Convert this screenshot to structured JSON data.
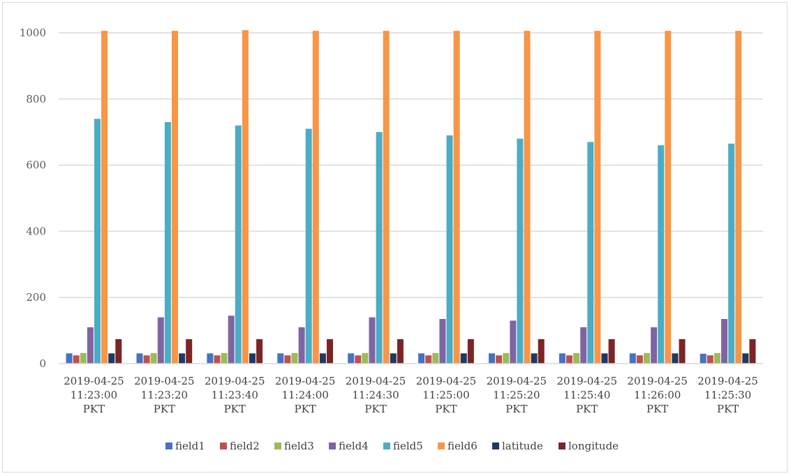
{
  "chart_data": {
    "type": "bar",
    "title": "",
    "xlabel": "",
    "ylabel": "",
    "ylim": [
      0,
      1000
    ],
    "yticks": [
      0,
      200,
      400,
      600,
      800,
      1000
    ],
    "grid": true,
    "legend_position": "bottom",
    "categories": [
      [
        "2019-04-25",
        "11:23:00",
        "PKT"
      ],
      [
        "2019-04-25",
        "11:23:20",
        "PKT"
      ],
      [
        "2019-04-25",
        "11:23:40",
        "PKT"
      ],
      [
        "2019-04-25",
        "11:24:00",
        "PKT"
      ],
      [
        "2019-04-25",
        "11:24:30",
        "PKT"
      ],
      [
        "2019-04-25",
        "11:25:00",
        "PKT"
      ],
      [
        "2019-04-25",
        "11:25:20",
        "PKT"
      ],
      [
        "2019-04-25",
        "11:25:40",
        "PKT"
      ],
      [
        "2019-04-25",
        "11:26:00",
        "PKT"
      ],
      [
        "2019-04-25",
        "11:25:30",
        "PKT"
      ]
    ],
    "series": [
      {
        "name": "field1",
        "color": "#4472c4",
        "values": [
          31,
          31,
          31,
          31,
          31,
          31,
          31,
          31,
          31,
          30
        ]
      },
      {
        "name": "field2",
        "color": "#c0504d",
        "values": [
          25,
          25,
          25,
          25,
          25,
          25,
          25,
          25,
          25,
          25
        ]
      },
      {
        "name": "field3",
        "color": "#9bbb59",
        "values": [
          32,
          32,
          32,
          32,
          32,
          32,
          32,
          32,
          32,
          32
        ]
      },
      {
        "name": "field4",
        "color": "#8064a2",
        "values": [
          110,
          140,
          145,
          110,
          140,
          135,
          130,
          110,
          110,
          135
        ]
      },
      {
        "name": "field5",
        "color": "#4bacc6",
        "values": [
          740,
          730,
          720,
          710,
          700,
          690,
          680,
          670,
          660,
          665
        ]
      },
      {
        "name": "field6",
        "color": "#f79646",
        "values": [
          1006,
          1006,
          1008,
          1006,
          1006,
          1006,
          1006,
          1006,
          1006,
          1006
        ]
      },
      {
        "name": "latitude",
        "color": "#1f3864",
        "values": [
          31,
          31,
          31,
          31,
          31,
          31,
          31,
          31,
          31,
          31
        ]
      },
      {
        "name": "longitude",
        "color": "#7b2525",
        "values": [
          74,
          74,
          74,
          74,
          74,
          74,
          74,
          74,
          74,
          74
        ]
      }
    ]
  }
}
